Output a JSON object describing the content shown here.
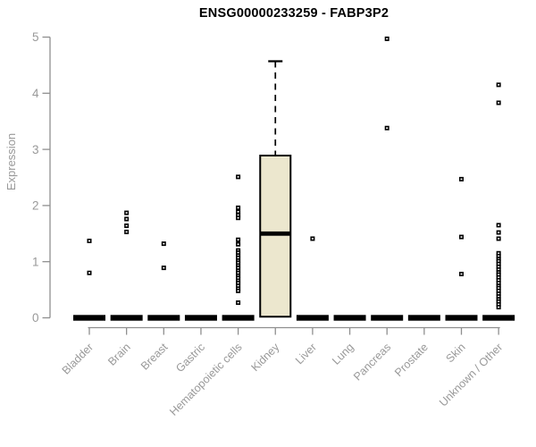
{
  "chart_data": {
    "type": "boxplot",
    "title": "ENSG00000233259 - FABP3P2",
    "ylabel": "Expression",
    "xlabel": "",
    "ylim": [
      0,
      5
    ],
    "yticks": [
      "0",
      "1",
      "2",
      "3",
      "4",
      "5"
    ],
    "grid": false,
    "legend": null,
    "categories": [
      "Bladder",
      "Brain",
      "Breast",
      "Gastric",
      "Hematopoietic cells",
      "Kidney",
      "Liver",
      "Lung",
      "Pancreas",
      "Prostate",
      "Skin",
      "Unknown / Other"
    ],
    "boxes": [
      {
        "category": "Bladder",
        "q1": 0,
        "median": 0,
        "q3": 0,
        "whisker_low": 0,
        "whisker_high": 0,
        "outliers": [
          1.37,
          0.8
        ]
      },
      {
        "category": "Brain",
        "q1": 0,
        "median": 0,
        "q3": 0,
        "whisker_low": 0,
        "whisker_high": 0,
        "outliers": [
          1.87,
          1.76,
          1.64,
          1.53
        ]
      },
      {
        "category": "Breast",
        "q1": 0,
        "median": 0,
        "q3": 0,
        "whisker_low": 0,
        "whisker_high": 0,
        "outliers": [
          1.32,
          0.89
        ]
      },
      {
        "category": "Gastric",
        "q1": 0,
        "median": 0,
        "q3": 0,
        "whisker_low": 0,
        "whisker_high": 0,
        "outliers": []
      },
      {
        "category": "Hematopoietic cells",
        "q1": 0,
        "median": 0,
        "q3": 0,
        "whisker_low": 0,
        "whisker_high": 0,
        "outliers": [
          2.51,
          1.96,
          1.89,
          1.83,
          1.78,
          1.39,
          1.31,
          1.2,
          1.16,
          1.11,
          1.07,
          1.02,
          0.98,
          0.93,
          0.89,
          0.84,
          0.8,
          0.75,
          0.71,
          0.66,
          0.62,
          0.57,
          0.52,
          0.48,
          0.27
        ]
      },
      {
        "category": "Kidney",
        "q1": 0.02,
        "median": 1.5,
        "q3": 2.89,
        "whisker_low": 0.02,
        "whisker_high": 4.57,
        "outliers": []
      },
      {
        "category": "Liver",
        "q1": 0,
        "median": 0,
        "q3": 0,
        "whisker_low": 0,
        "whisker_high": 0,
        "outliers": [
          1.41
        ]
      },
      {
        "category": "Lung",
        "q1": 0,
        "median": 0,
        "q3": 0,
        "whisker_low": 0,
        "whisker_high": 0,
        "outliers": []
      },
      {
        "category": "Pancreas",
        "q1": 0,
        "median": 0,
        "q3": 0,
        "whisker_low": 0,
        "whisker_high": 0,
        "outliers": [
          4.97,
          3.38
        ]
      },
      {
        "category": "Prostate",
        "q1": 0,
        "median": 0,
        "q3": 0,
        "whisker_low": 0,
        "whisker_high": 0,
        "outliers": []
      },
      {
        "category": "Skin",
        "q1": 0,
        "median": 0,
        "q3": 0,
        "whisker_low": 0,
        "whisker_high": 0,
        "outliers": [
          2.47,
          1.44,
          0.78
        ]
      },
      {
        "category": "Unknown / Other",
        "q1": 0,
        "median": 0,
        "q3": 0,
        "whisker_low": 0,
        "whisker_high": 0,
        "outliers": [
          4.15,
          3.83,
          1.65,
          1.52,
          1.41,
          1.15,
          1.1,
          1.05,
          1.01,
          0.96,
          0.91,
          0.86,
          0.81,
          0.77,
          0.72,
          0.67,
          0.62,
          0.57,
          0.53,
          0.48,
          0.43,
          0.38,
          0.33,
          0.29,
          0.24,
          0.19
        ]
      }
    ]
  },
  "colors": {
    "background": "#ffffff",
    "title": "#000000",
    "axis": "#8f8f8f",
    "tick_label": "#999999",
    "box_fill": "#ECE7CE",
    "box_border": "#000000",
    "median": "#000000",
    "point": "#000000",
    "point_center": "#ffffff"
  }
}
